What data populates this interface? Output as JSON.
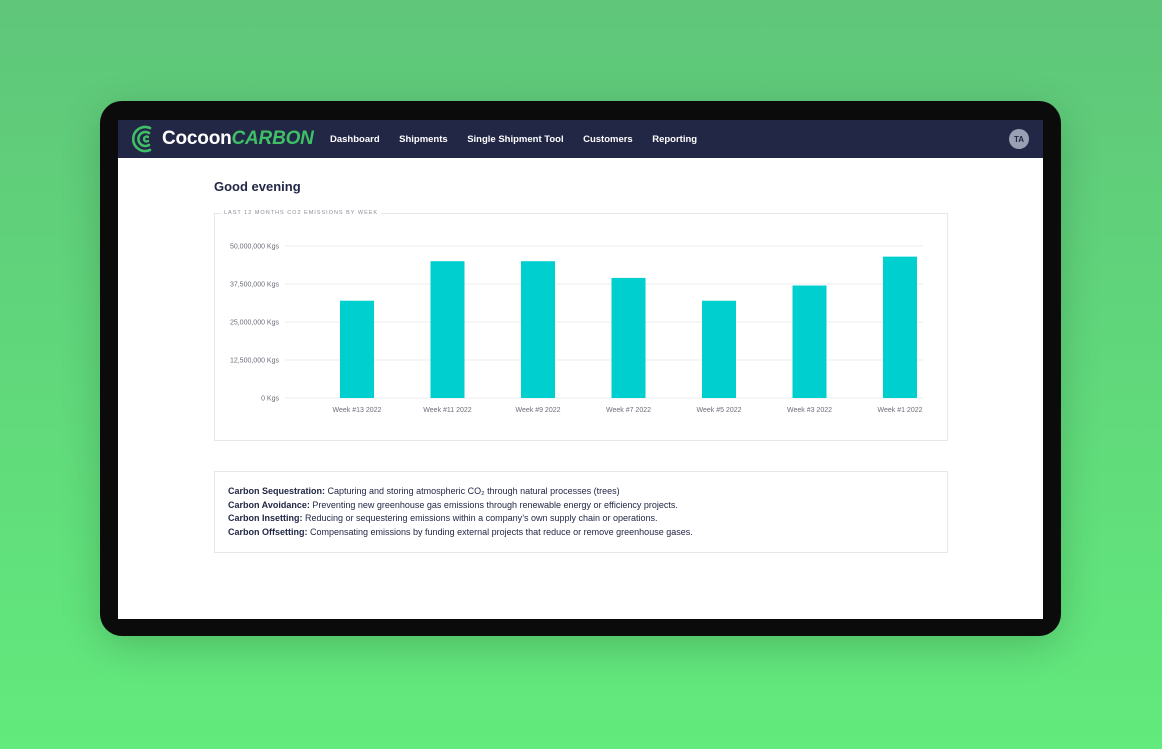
{
  "brand": {
    "name_part1": "Cocoon",
    "name_part2": "CARBON"
  },
  "nav": {
    "items": [
      {
        "label": "Dashboard"
      },
      {
        "label": "Shipments"
      },
      {
        "label": "Single Shipment Tool"
      },
      {
        "label": "Customers"
      },
      {
        "label": "Reporting"
      }
    ],
    "user_initials": "TA"
  },
  "greeting": "Good evening",
  "chart_data": {
    "type": "bar",
    "title": "LAST 12 MONTHS CO2 EMISSIONS BY WEEK",
    "categories": [
      "Week #13 2022",
      "Week #11 2022",
      "Week #9 2022",
      "Week #7 2022",
      "Week #5 2022",
      "Week #3 2022",
      "Week #1 2022"
    ],
    "values": [
      32000000,
      45000000,
      45000000,
      39500000,
      32000000,
      37000000,
      46500000
    ],
    "ylim": [
      0,
      50000000
    ],
    "yticks": [
      {
        "value": 50000000,
        "label": "50,000,000 Kgs"
      },
      {
        "value": 37500000,
        "label": "37,500,000 Kgs"
      },
      {
        "value": 25000000,
        "label": "25,000,000 Kgs"
      },
      {
        "value": 12500000,
        "label": "12,500,000 Kgs"
      },
      {
        "value": 0,
        "label": "0 Kgs"
      }
    ],
    "grid": true,
    "bar_color": "#00cfd0"
  },
  "definitions": [
    {
      "term": "Carbon Sequestration:",
      "text": "Capturing and storing atmospheric CO₂ through natural processes (trees)"
    },
    {
      "term": "Carbon Avoidance:",
      "text": "Preventing new greenhouse gas emissions through renewable energy or efficiency projects."
    },
    {
      "term": "Carbon Insetting:",
      "text": "Reducing or sequestering emissions within a company’s own supply chain or operations."
    },
    {
      "term": "Carbon Offsetting:",
      "text": "Compensating emissions by funding external projects that reduce or remove greenhouse gases."
    }
  ],
  "colors": {
    "navbar": "#222745",
    "accent": "#3fbf66",
    "bar": "#00cfd0"
  }
}
